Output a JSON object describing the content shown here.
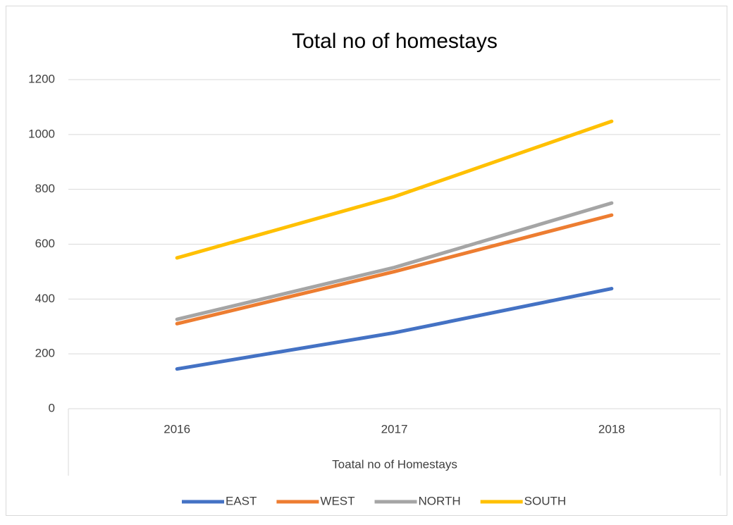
{
  "chart_data": {
    "type": "line",
    "title": "Total no of homestays",
    "x_label": "Toatal no of Homestays",
    "categories": [
      "2016",
      "2017",
      "2018"
    ],
    "series": [
      {
        "name": "EAST",
        "color": "#4472c4",
        "values": [
          145,
          277,
          438
        ]
      },
      {
        "name": "WEST",
        "color": "#ed7d31",
        "values": [
          310,
          500,
          706
        ]
      },
      {
        "name": "NORTH",
        "color": "#a5a5a5",
        "values": [
          326,
          515,
          750
        ]
      },
      {
        "name": "SOUTH",
        "color": "#ffc000",
        "values": [
          550,
          773,
          1048
        ]
      }
    ],
    "ylim": [
      0,
      1200
    ],
    "yticks": [
      0,
      200,
      400,
      600,
      800,
      1000,
      1200
    ],
    "grid": true,
    "legend": "bottom"
  }
}
